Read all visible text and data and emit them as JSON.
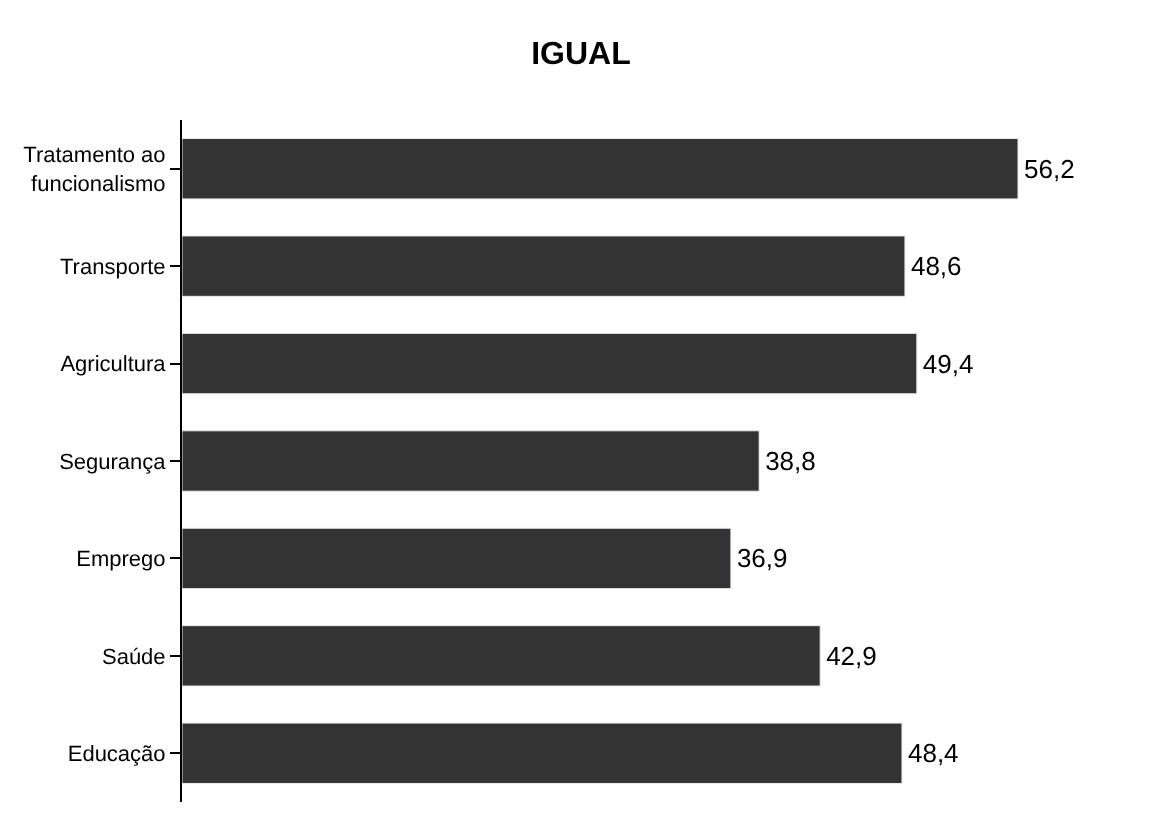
{
  "chart_data": {
    "type": "bar",
    "orientation": "horizontal",
    "title": "IGUAL",
    "categories": [
      "Tratamento ao\nfuncionalismo",
      "Transporte",
      "Agricultura",
      "Segurança",
      "Emprego",
      "Saúde",
      "Educação"
    ],
    "values": [
      56.2,
      48.6,
      49.4,
      38.8,
      36.9,
      42.9,
      48.4
    ],
    "value_labels": [
      "56,2",
      "48,6",
      "49,4",
      "38,8",
      "36,9",
      "42,9",
      "48,4"
    ],
    "color": "#333333"
  }
}
